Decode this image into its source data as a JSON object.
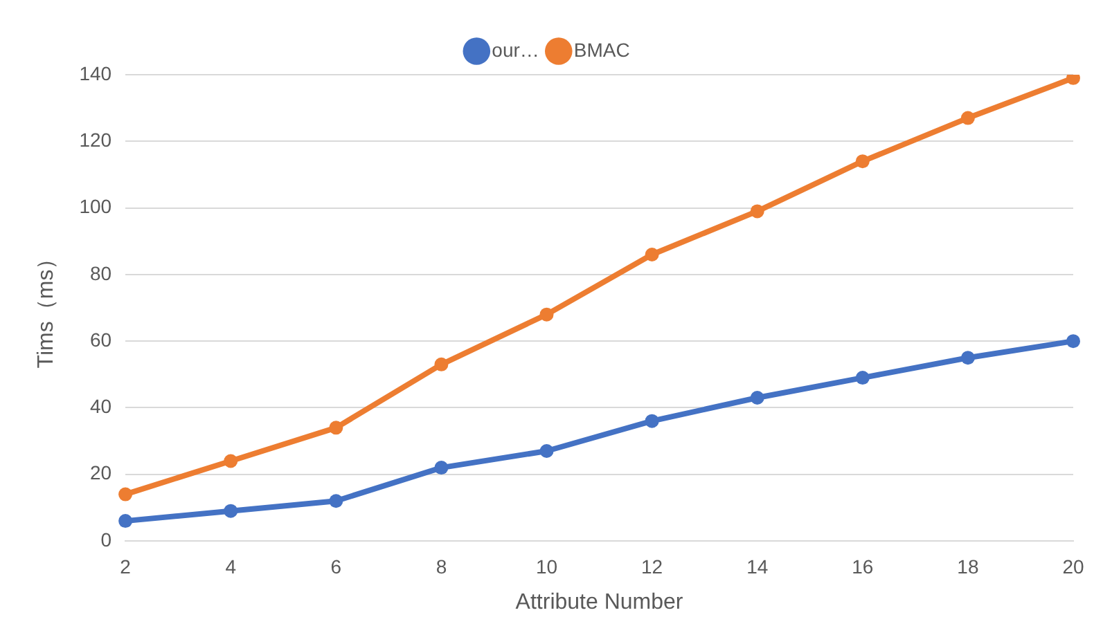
{
  "chart_data": {
    "type": "line",
    "xlabel": "Attribute Number",
    "ylabel": "Tims（ms）",
    "categories": [
      "2",
      "4",
      "6",
      "8",
      "10",
      "12",
      "14",
      "16",
      "18",
      "20"
    ],
    "series": [
      {
        "name": "our…",
        "color": "#4472c4",
        "values": [
          6,
          9,
          12,
          22,
          27,
          36,
          43,
          49,
          55,
          60
        ]
      },
      {
        "name": "BMAC",
        "color": "#ed7d31",
        "values": [
          14,
          24,
          34,
          53,
          68,
          86,
          99,
          114,
          127,
          139
        ]
      }
    ],
    "ylim": [
      0,
      140
    ],
    "yticks": [
      0,
      20,
      40,
      60,
      80,
      100,
      120,
      140
    ],
    "grid": "y",
    "legend": "top",
    "marker": "circle"
  }
}
